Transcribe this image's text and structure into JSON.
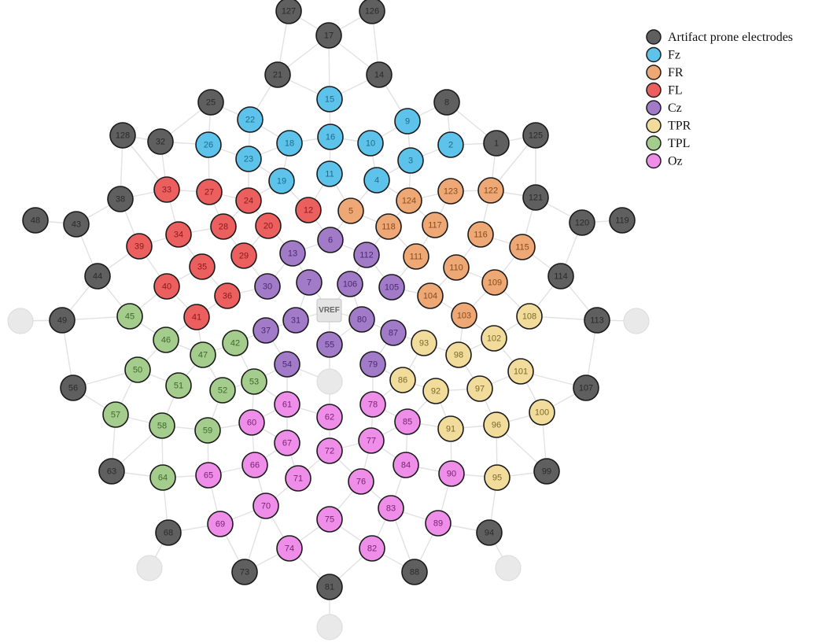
{
  "legend": [
    {
      "key": "artifact",
      "label": "Artifact prone electrodes",
      "fill": "#5f5f5f",
      "text": "#2a2a2a"
    },
    {
      "key": "Fz",
      "label": "Fz",
      "fill": "#5ec3ea",
      "text": "#1d6a8a"
    },
    {
      "key": "FR",
      "label": "FR",
      "fill": "#eda875",
      "text": "#8a4a1e"
    },
    {
      "key": "FL",
      "label": "FL",
      "fill": "#ec5f5f",
      "text": "#8a1818"
    },
    {
      "key": "Cz",
      "label": "Cz",
      "fill": "#a27bc8",
      "text": "#4a2a6e"
    },
    {
      "key": "TPR",
      "label": "TPR",
      "fill": "#f1dc9c",
      "text": "#7a6a2a"
    },
    {
      "key": "TPL",
      "label": "TPL",
      "fill": "#a4cc8c",
      "text": "#3d6a28"
    },
    {
      "key": "Oz",
      "label": "Oz",
      "fill": "#ee8ee8",
      "text": "#7a2272"
    }
  ],
  "reference_label": "VREF",
  "electrodes": [
    {
      "label": "127",
      "group": "artifact"
    },
    {
      "label": "126",
      "group": "artifact"
    },
    {
      "label": "17",
      "group": "artifact"
    },
    {
      "label": "21",
      "group": "artifact"
    },
    {
      "label": "14",
      "group": "artifact"
    },
    {
      "label": "25",
      "group": "artifact"
    },
    {
      "label": "8",
      "group": "artifact"
    },
    {
      "label": "128",
      "group": "artifact"
    },
    {
      "label": "32",
      "group": "artifact"
    },
    {
      "label": "1",
      "group": "artifact"
    },
    {
      "label": "125",
      "group": "artifact"
    },
    {
      "label": "38",
      "group": "artifact"
    },
    {
      "label": "121",
      "group": "artifact"
    },
    {
      "label": "48",
      "group": "artifact"
    },
    {
      "label": "43",
      "group": "artifact"
    },
    {
      "label": "120",
      "group": "artifact"
    },
    {
      "label": "119",
      "group": "artifact"
    },
    {
      "label": "44",
      "group": "artifact"
    },
    {
      "label": "114",
      "group": "artifact"
    },
    {
      "label": "49",
      "group": "artifact"
    },
    {
      "label": "113",
      "group": "artifact"
    },
    {
      "label": "56",
      "group": "artifact"
    },
    {
      "label": "107",
      "group": "artifact"
    },
    {
      "label": "63",
      "group": "artifact"
    },
    {
      "label": "99",
      "group": "artifact"
    },
    {
      "label": "68",
      "group": "artifact"
    },
    {
      "label": "94",
      "group": "artifact"
    },
    {
      "label": "73",
      "group": "artifact"
    },
    {
      "label": "88",
      "group": "artifact"
    },
    {
      "label": "81",
      "group": "artifact"
    },
    {
      "label": "15",
      "group": "Fz"
    },
    {
      "label": "22",
      "group": "Fz"
    },
    {
      "label": "9",
      "group": "Fz"
    },
    {
      "label": "26",
      "group": "Fz"
    },
    {
      "label": "18",
      "group": "Fz"
    },
    {
      "label": "16",
      "group": "Fz"
    },
    {
      "label": "10",
      "group": "Fz"
    },
    {
      "label": "2",
      "group": "Fz"
    },
    {
      "label": "23",
      "group": "Fz"
    },
    {
      "label": "3",
      "group": "Fz"
    },
    {
      "label": "19",
      "group": "Fz"
    },
    {
      "label": "11",
      "group": "Fz"
    },
    {
      "label": "4",
      "group": "Fz"
    },
    {
      "label": "124",
      "group": "FR"
    },
    {
      "label": "123",
      "group": "FR"
    },
    {
      "label": "122",
      "group": "FR"
    },
    {
      "label": "5",
      "group": "FR"
    },
    {
      "label": "118",
      "group": "FR"
    },
    {
      "label": "117",
      "group": "FR"
    },
    {
      "label": "116",
      "group": "FR"
    },
    {
      "label": "115",
      "group": "FR"
    },
    {
      "label": "111",
      "group": "FR"
    },
    {
      "label": "110",
      "group": "FR"
    },
    {
      "label": "109",
      "group": "FR"
    },
    {
      "label": "104",
      "group": "FR"
    },
    {
      "label": "103",
      "group": "FR"
    },
    {
      "label": "33",
      "group": "FL"
    },
    {
      "label": "27",
      "group": "FL"
    },
    {
      "label": "24",
      "group": "FL"
    },
    {
      "label": "12",
      "group": "FL"
    },
    {
      "label": "39",
      "group": "FL"
    },
    {
      "label": "34",
      "group": "FL"
    },
    {
      "label": "28",
      "group": "FL"
    },
    {
      "label": "20",
      "group": "FL"
    },
    {
      "label": "35",
      "group": "FL"
    },
    {
      "label": "29",
      "group": "FL"
    },
    {
      "label": "40",
      "group": "FL"
    },
    {
      "label": "36",
      "group": "FL"
    },
    {
      "label": "41",
      "group": "FL"
    },
    {
      "label": "6",
      "group": "Cz"
    },
    {
      "label": "13",
      "group": "Cz"
    },
    {
      "label": "112",
      "group": "Cz"
    },
    {
      "label": "30",
      "group": "Cz"
    },
    {
      "label": "7",
      "group": "Cz"
    },
    {
      "label": "106",
      "group": "Cz"
    },
    {
      "label": "105",
      "group": "Cz"
    },
    {
      "label": "37",
      "group": "Cz"
    },
    {
      "label": "31",
      "group": "Cz"
    },
    {
      "label": "80",
      "group": "Cz"
    },
    {
      "label": "87",
      "group": "Cz"
    },
    {
      "label": "55",
      "group": "Cz"
    },
    {
      "label": "54",
      "group": "Cz"
    },
    {
      "label": "79",
      "group": "Cz"
    },
    {
      "label": "108",
      "group": "TPR"
    },
    {
      "label": "93",
      "group": "TPR"
    },
    {
      "label": "102",
      "group": "TPR"
    },
    {
      "label": "98",
      "group": "TPR"
    },
    {
      "label": "86",
      "group": "TPR"
    },
    {
      "label": "101",
      "group": "TPR"
    },
    {
      "label": "92",
      "group": "TPR"
    },
    {
      "label": "97",
      "group": "TPR"
    },
    {
      "label": "100",
      "group": "TPR"
    },
    {
      "label": "91",
      "group": "TPR"
    },
    {
      "label": "96",
      "group": "TPR"
    },
    {
      "label": "95",
      "group": "TPR"
    },
    {
      "label": "45",
      "group": "TPL"
    },
    {
      "label": "46",
      "group": "TPL"
    },
    {
      "label": "42",
      "group": "TPL"
    },
    {
      "label": "47",
      "group": "TPL"
    },
    {
      "label": "50",
      "group": "TPL"
    },
    {
      "label": "53",
      "group": "TPL"
    },
    {
      "label": "51",
      "group": "TPL"
    },
    {
      "label": "52",
      "group": "TPL"
    },
    {
      "label": "57",
      "group": "TPL"
    },
    {
      "label": "58",
      "group": "TPL"
    },
    {
      "label": "59",
      "group": "TPL"
    },
    {
      "label": "64",
      "group": "TPL"
    },
    {
      "label": "61",
      "group": "Oz"
    },
    {
      "label": "78",
      "group": "Oz"
    },
    {
      "label": "60",
      "group": "Oz"
    },
    {
      "label": "62",
      "group": "Oz"
    },
    {
      "label": "85",
      "group": "Oz"
    },
    {
      "label": "67",
      "group": "Oz"
    },
    {
      "label": "77",
      "group": "Oz"
    },
    {
      "label": "72",
      "group": "Oz"
    },
    {
      "label": "66",
      "group": "Oz"
    },
    {
      "label": "65",
      "group": "Oz"
    },
    {
      "label": "84",
      "group": "Oz"
    },
    {
      "label": "90",
      "group": "Oz"
    },
    {
      "label": "71",
      "group": "Oz"
    },
    {
      "label": "76",
      "group": "Oz"
    },
    {
      "label": "70",
      "group": "Oz"
    },
    {
      "label": "83",
      "group": "Oz"
    },
    {
      "label": "75",
      "group": "Oz"
    },
    {
      "label": "69",
      "group": "Oz"
    },
    {
      "label": "89",
      "group": "Oz"
    },
    {
      "label": "74",
      "group": "Oz"
    },
    {
      "label": "82",
      "group": "Oz"
    }
  ]
}
